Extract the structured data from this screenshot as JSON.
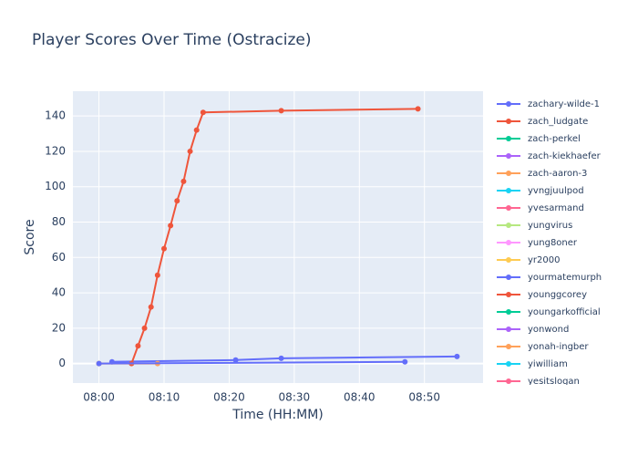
{
  "chart_data": {
    "type": "line",
    "title": "Player Scores Over Time (Ostracize)",
    "x_label": "Time (HH:MM)",
    "y_label": "Score",
    "xlim": [
      "07:56",
      "08:59"
    ],
    "xticks": [
      "08:00",
      "08:10",
      "08:20",
      "08:30",
      "08:40",
      "08:50"
    ],
    "ylim": [
      -11,
      154
    ],
    "yticks": [
      0,
      20,
      40,
      60,
      80,
      100,
      120,
      140
    ],
    "grid": true,
    "series": [
      {
        "name": "zachary-wilde-1",
        "color": "#636efa",
        "x": [
          "08:02",
          "08:21",
          "08:28",
          "08:55"
        ],
        "values": [
          1,
          2,
          3,
          4
        ]
      },
      {
        "name": "zach_ludgate",
        "color": "#ef553b",
        "x": [
          "08:05",
          "08:06",
          "08:07",
          "08:08",
          "08:09",
          "08:10",
          "08:11",
          "08:12",
          "08:13",
          "08:14",
          "08:15",
          "08:16",
          "08:28",
          "08:49"
        ],
        "values": [
          0,
          10,
          20,
          32,
          50,
          65,
          78,
          92,
          103,
          120,
          132,
          142,
          143,
          144
        ]
      },
      {
        "name": "zach-perkel",
        "color": "#00cc96",
        "x": [],
        "values": []
      },
      {
        "name": "zach-kiekhaefer",
        "color": "#ab63fa",
        "x": [],
        "values": []
      },
      {
        "name": "zach-aaron-3",
        "color": "#ffa15a",
        "x": [
          "08:00",
          "08:09"
        ],
        "values": [
          0,
          0
        ]
      },
      {
        "name": "yvngjuulpod",
        "color": "#19d3f3",
        "x": [],
        "values": []
      },
      {
        "name": "yvesarmand",
        "color": "#ff6692",
        "x": [],
        "values": []
      },
      {
        "name": "yungvirus",
        "color": "#b6e880",
        "x": [],
        "values": []
      },
      {
        "name": "yung8oner",
        "color": "#ff97ff",
        "x": [],
        "values": []
      },
      {
        "name": "yr2000",
        "color": "#fecb52",
        "x": [
          "08:00"
        ],
        "values": [
          0
        ]
      },
      {
        "name": "yourmatemurph",
        "color": "#636efa",
        "x": [
          "08:00",
          "08:47"
        ],
        "values": [
          0,
          1
        ]
      },
      {
        "name": "younggcorey",
        "color": "#ef553b",
        "x": [],
        "values": []
      },
      {
        "name": "youngarkofficial",
        "color": "#00cc96",
        "x": [],
        "values": []
      },
      {
        "name": "yonwond",
        "color": "#ab63fa",
        "x": [],
        "values": []
      },
      {
        "name": "yonah-ingber",
        "color": "#ffa15a",
        "x": [],
        "values": []
      },
      {
        "name": "yiwilliam",
        "color": "#19d3f3",
        "x": [],
        "values": []
      },
      {
        "name": "yesitslogan",
        "color": "#ff6692",
        "x": [],
        "values": []
      }
    ]
  }
}
